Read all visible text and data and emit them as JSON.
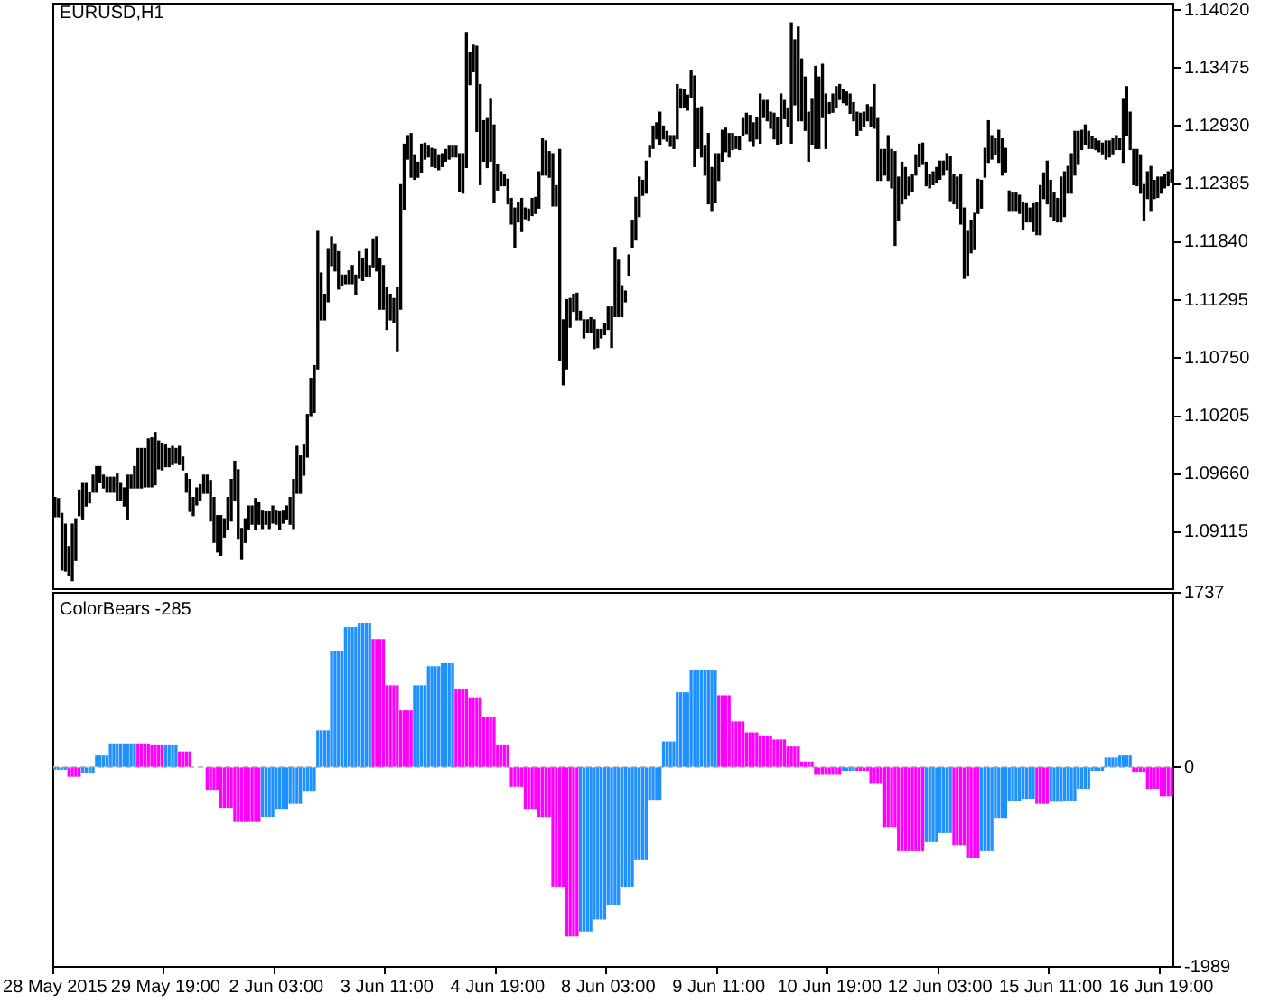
{
  "chart_data": [
    {
      "type": "bar",
      "title": "EURUSD,H1",
      "color": "#000000",
      "tick_labels": "y",
      "categories": [
        null,
        null,
        null,
        null,
        null,
        null,
        null,
        null,
        null,
        null,
        null,
        null,
        null,
        null,
        null,
        null,
        null,
        null,
        null,
        null,
        null,
        null,
        null,
        null,
        null,
        null,
        null,
        null,
        null,
        null,
        null,
        null,
        null,
        null,
        null,
        null,
        null,
        null,
        null,
        null,
        null,
        null,
        null,
        null,
        null,
        null,
        null,
        null,
        null,
        null,
        null,
        null,
        null,
        null,
        null,
        null,
        null,
        null,
        null,
        null,
        null,
        null,
        null,
        null,
        null,
        null,
        null,
        null,
        null,
        null,
        null,
        null,
        null,
        null,
        null,
        null,
        null,
        null,
        null,
        null,
        null,
        null,
        null,
        null,
        null,
        null,
        null,
        null,
        null,
        null,
        null,
        null,
        null,
        null,
        null,
        null,
        null,
        null,
        null,
        null,
        null,
        null,
        null,
        null,
        null,
        null,
        null,
        null,
        null,
        null,
        null,
        null,
        null,
        null,
        null,
        null,
        null,
        null,
        null,
        null,
        null,
        null,
        null,
        null,
        null,
        null,
        null,
        null,
        null,
        null,
        null,
        null,
        null,
        null,
        null,
        null,
        null,
        null,
        null,
        null,
        null,
        null,
        null,
        null,
        null,
        null,
        null,
        null,
        null,
        null,
        null,
        null,
        null,
        null,
        null,
        null,
        null,
        null,
        null,
        null,
        null,
        null,
        null,
        null,
        null,
        null,
        null,
        null,
        null,
        null,
        null,
        null,
        null,
        null,
        null,
        null,
        null,
        null,
        null,
        null,
        null,
        null,
        null,
        null,
        null,
        null,
        null,
        null,
        null,
        null,
        null,
        null,
        null,
        null,
        null,
        null,
        null,
        null,
        null,
        null,
        null,
        null,
        null,
        null,
        null,
        null,
        null,
        null,
        null,
        null,
        null,
        null,
        null,
        null,
        null,
        null,
        null,
        null,
        null,
        null,
        null,
        null,
        null,
        null,
        null,
        null,
        null,
        null,
        null,
        null,
        null,
        null,
        null,
        null,
        null,
        null,
        null,
        null,
        null,
        null,
        null,
        null,
        null,
        null,
        null,
        null,
        null,
        null,
        null,
        null,
        null,
        null,
        null,
        null,
        null,
        null,
        null,
        null,
        null,
        null,
        null,
        null,
        null,
        null,
        null,
        null,
        null,
        null,
        null,
        null,
        null,
        null,
        null,
        null,
        null,
        null,
        null,
        null,
        null,
        null,
        null,
        null,
        null,
        null,
        null,
        null,
        null,
        null,
        null,
        null,
        null,
        null,
        null,
        null,
        null,
        null,
        null,
        null,
        null,
        null,
        null,
        null,
        null,
        null,
        null,
        null,
        null,
        null,
        null,
        null,
        null,
        null,
        null,
        null,
        null,
        null,
        null,
        null,
        null,
        null,
        null,
        null,
        null,
        null
      ],
      "base": [
        1.0926,
        1.0926,
        1.0876,
        1.0875,
        1.0871,
        1.0866,
        1.0885,
        1.0927,
        1.0924,
        1.0936,
        1.0939,
        1.0949,
        1.0949,
        1.0958,
        1.0953,
        1.0949,
        1.0949,
        1.0949,
        1.0941,
        1.0941,
        1.0936,
        1.0924,
        1.0953,
        1.0953,
        1.0953,
        1.0953,
        1.0954,
        1.0954,
        1.0954,
        1.0956,
        1.0971,
        1.097,
        1.0973,
        1.0973,
        1.0975,
        1.0977,
        1.0975,
        1.097,
        1.0949,
        1.0931,
        1.0927,
        1.0937,
        1.0941,
        1.0948,
        1.0948,
        1.0922,
        1.0902,
        1.0893,
        1.089,
        1.0907,
        1.0914,
        1.0922,
        1.0941,
        1.0905,
        1.0886,
        1.0902,
        1.0914,
        1.0919,
        1.0914,
        1.0919,
        1.0915,
        1.0919,
        1.0915,
        1.092,
        1.0919,
        1.0914,
        1.092,
        1.0924,
        1.0919,
        1.0915,
        1.0948,
        1.0948,
        1.0965,
        1.0982,
        1.1021,
        1.1024,
        1.1065,
        1.1111,
        1.1111,
        1.1128,
        1.1162,
        1.1157,
        1.114,
        1.1143,
        1.1145,
        1.1145,
        1.1145,
        1.1135,
        1.115,
        1.1148,
        1.1152,
        1.1152,
        1.116,
        1.1157,
        1.1121,
        1.1121,
        1.1102,
        1.1111,
        1.1109,
        1.1082,
        1.1121,
        1.1215,
        1.1262,
        1.1245,
        1.1243,
        1.1245,
        1.1249,
        1.1262,
        1.1264,
        1.1255,
        1.1254,
        1.1252,
        1.1255,
        1.126,
        1.1262,
        1.1264,
        1.1264,
        1.1232,
        1.123,
        1.1254,
        1.1332,
        1.1344,
        1.1288,
        1.1238,
        1.126,
        1.1254,
        1.126,
        1.1221,
        1.1233,
        1.1237,
        1.1237,
        1.122,
        1.1201,
        1.1179,
        1.1203,
        1.1194,
        1.1206,
        1.1204,
        1.1209,
        1.1211,
        1.1216,
        1.1247,
        1.1247,
        1.1245,
        1.1218,
        1.1218,
        1.1073,
        1.105,
        1.1065,
        1.1104,
        1.1119,
        1.1111,
        1.1111,
        1.1094,
        1.1099,
        1.1099,
        1.1084,
        1.1085,
        1.1094,
        1.1097,
        1.1102,
        1.1085,
        1.1114,
        1.1114,
        1.1114,
        1.1128,
        1.1153,
        1.1179,
        1.1186,
        1.1208,
        1.1228,
        1.123,
        1.1264,
        1.1272,
        1.1281,
        1.1276,
        1.1281,
        1.1279,
        1.1274,
        1.1272,
        1.1281,
        1.131,
        1.1311,
        1.1308,
        1.132,
        1.1255,
        1.1272,
        1.1264,
        1.1247,
        1.122,
        1.1213,
        1.1221,
        1.1242,
        1.126,
        1.1269,
        1.1264,
        1.1271,
        1.1272,
        1.1271,
        1.1284,
        1.1286,
        1.1279,
        1.1274,
        1.1281,
        1.1277,
        1.1301,
        1.1298,
        1.1291,
        1.1281,
        1.1276,
        1.1277,
        1.13,
        1.1293,
        1.1277,
        1.1313,
        1.1298,
        1.1298,
        1.1289,
        1.126,
        1.1276,
        1.1272,
        1.1272,
        1.1301,
        1.1272,
        1.1305,
        1.1306,
        1.131,
        1.1318,
        1.1315,
        1.1313,
        1.1305,
        1.1298,
        1.1284,
        1.1289,
        1.1293,
        1.1298,
        1.1293,
        1.1291,
        1.1242,
        1.1242,
        1.1247,
        1.1242,
        1.1235,
        1.1181,
        1.1204,
        1.122,
        1.1225,
        1.1228,
        1.1232,
        1.1247,
        1.1255,
        1.1257,
        1.1237,
        1.1235,
        1.1238,
        1.124,
        1.1243,
        1.1247,
        1.1252,
        1.1223,
        1.122,
        1.1216,
        1.1201,
        1.115,
        1.1153,
        1.1174,
        1.1177,
        1.1211,
        1.1216,
        1.1245,
        1.1259,
        1.1262,
        1.1266,
        1.1259,
        1.1247,
        1.125,
        1.1213,
        1.1213,
        1.1213,
        1.1211,
        1.1196,
        1.1203,
        1.1203,
        1.1194,
        1.1191,
        1.1191,
        1.1225,
        1.122,
        1.1208,
        1.1204,
        1.1203,
        1.1203,
        1.1208,
        1.123,
        1.123,
        1.1247,
        1.1257,
        1.1271,
        1.1276,
        1.1272,
        1.1272,
        1.1271,
        1.1269,
        1.1267,
        1.1262,
        1.1264,
        1.1267,
        1.1271,
        1.1271,
        1.1259,
        1.1284,
        1.1271,
        1.1238,
        1.1237,
        1.123,
        1.1204,
        1.1225,
        1.1213,
        1.1225,
        1.1226,
        1.123,
        1.1235,
        1.1237,
        1.124
      ],
      "values": [
        0.0018,
        0.0017,
        0.0053,
        0.0044,
        0.0027,
        0.0053,
        0.0039,
        0.0024,
        0.0034,
        0.0022,
        0.001,
        0.0016,
        0.0024,
        0.0015,
        0.0012,
        0.0014,
        0.0014,
        0.0014,
        0.0025,
        0.0017,
        0.0017,
        0.0041,
        0.0012,
        0.002,
        0.0037,
        0.0037,
        0.0036,
        0.0045,
        0.0046,
        0.0049,
        0.0026,
        0.0025,
        0.0021,
        0.0017,
        0.0017,
        0.0013,
        0.0017,
        0.0012,
        0.0017,
        0.003,
        0.0017,
        0.0016,
        0.0015,
        0.0017,
        0.0017,
        0.0038,
        0.0042,
        0.0034,
        0.0037,
        0.0017,
        0.003,
        0.0039,
        0.0037,
        0.0065,
        0.0029,
        0.0022,
        0.0022,
        0.0017,
        0.0029,
        0.002,
        0.0017,
        0.0012,
        0.0016,
        0.0016,
        0.0013,
        0.0017,
        0.0012,
        0.0012,
        0.0025,
        0.0046,
        0.0044,
        0.0035,
        0.0029,
        0.004,
        0.0035,
        0.0044,
        0.0129,
        0.0044,
        0.0024,
        0.0049,
        0.0027,
        0.0025,
        0.0035,
        0.001,
        0.0008,
        0.0012,
        0.0017,
        0.0018,
        0.0025,
        0.0021,
        0.0025,
        0.001,
        0.0027,
        0.0032,
        0.0048,
        0.0041,
        0.0039,
        0.0024,
        0.0022,
        0.0059,
        0.0117,
        0.0061,
        0.0022,
        0.0041,
        0.0023,
        0.0014,
        0.0027,
        0.0015,
        0.001,
        0.0017,
        0.0017,
        0.0014,
        0.0012,
        0.0011,
        0.0012,
        0.001,
        0.001,
        0.0035,
        0.0037,
        0.0127,
        0.003,
        0.0025,
        0.008,
        0.0094,
        0.0038,
        0.0046,
        0.0058,
        0.0073,
        0.0024,
        0.0013,
        0.001,
        0.0023,
        0.0024,
        0.0037,
        0.0018,
        0.0031,
        0.001,
        0.0011,
        0.0016,
        0.0015,
        0.0034,
        0.0034,
        0.0032,
        0.0024,
        0.0049,
        0.0019,
        0.0198,
        0.0061,
        0.0065,
        0.0027,
        0.0016,
        0.0025,
        0.0008,
        0.0017,
        0.0012,
        0.0014,
        0.0027,
        0.0017,
        0.0008,
        0.001,
        0.0021,
        0.0038,
        0.0065,
        0.0053,
        0.0029,
        0.001,
        0.0019,
        0.0025,
        0.004,
        0.0037,
        0.0014,
        0.003,
        0.001,
        0.0021,
        0.0015,
        0.003,
        0.0012,
        0.0009,
        0.001,
        0.0012,
        0.0051,
        0.0018,
        0.0016,
        0.0014,
        0.0025,
        0.0085,
        0.0038,
        0.0047,
        0.0027,
        0.0066,
        0.0041,
        0.0046,
        0.0025,
        0.0029,
        0.0022,
        0.0022,
        0.0015,
        0.0011,
        0.0012,
        0.0016,
        0.0019,
        0.0024,
        0.0022,
        0.002,
        0.0046,
        0.0016,
        0.0019,
        0.0015,
        0.0024,
        0.0025,
        0.0046,
        0.0017,
        0.0017,
        0.0113,
        0.0061,
        0.0088,
        0.0058,
        0.005,
        0.0046,
        0.0042,
        0.0077,
        0.0067,
        0.005,
        0.0051,
        0.001,
        0.0017,
        0.002,
        0.0014,
        0.0012,
        0.0012,
        0.0018,
        0.0017,
        0.0022,
        0.0016,
        0.0013,
        0.0015,
        0.0018,
        0.0041,
        0.0058,
        0.0029,
        0.0024,
        0.0042,
        0.0036,
        0.0088,
        0.0041,
        0.0039,
        0.0029,
        0.0017,
        0.0015,
        0.0019,
        0.0021,
        0.002,
        0.0022,
        0.0012,
        0.0012,
        0.0014,
        0.0017,
        0.0013,
        0.0015,
        0.0041,
        0.0027,
        0.0029,
        0.0046,
        0.0066,
        0.0041,
        0.003,
        0.0034,
        0.0032,
        0.0026,
        0.0027,
        0.0039,
        0.0022,
        0.0015,
        0.003,
        0.0034,
        0.0022,
        0.0019,
        0.0017,
        0.0017,
        0.0017,
        0.0025,
        0.0017,
        0.0013,
        0.0026,
        0.003,
        0.0046,
        0.0024,
        0.004,
        0.0034,
        0.0026,
        0.0022,
        0.0042,
        0.0042,
        0.0025,
        0.0037,
        0.0041,
        0.0031,
        0.0018,
        0.0018,
        0.0016,
        0.0011,
        0.001,
        0.001,
        0.001,
        0.0017,
        0.0015,
        0.0014,
        0.0013,
        0.001,
        0.0059,
        0.0046,
        0.0035,
        0.0033,
        0.0034,
        0.0036,
        0.0034,
        0.0025,
        0.0042,
        0.0017,
        0.0019,
        0.0015,
        0.0012,
        0.0013,
        0.0012
      ],
      "ylim": [
        1.0858,
        1.1408
      ],
      "yticks": [
        {
          "value": 1.1402,
          "label": "1.14020"
        },
        1.13475,
        {
          "value": 1.1293,
          "label": "1.12930"
        },
        1.12385,
        {
          "value": 1.1184,
          "label": "1.11840"
        },
        1.11295,
        {
          "value": 1.1075,
          "label": "1.10750"
        },
        1.10205,
        {
          "value": 1.0966,
          "label": "1.09660"
        },
        1.09115
      ]
    },
    {
      "type": "bar",
      "title": "ColorBears -285",
      "categories": [
        "28 May 2015",
        null,
        null,
        null,
        null,
        null,
        null,
        null,
        null,
        null,
        null,
        null,
        null,
        null,
        null,
        null,
        null,
        null,
        null,
        null,
        null,
        null,
        null,
        null,
        null,
        null,
        null,
        null,
        null,
        null,
        null,
        null,
        "29 May 19:00",
        null,
        null,
        null,
        null,
        null,
        null,
        null,
        null,
        null,
        null,
        null,
        null,
        null,
        null,
        null,
        null,
        null,
        null,
        null,
        null,
        null,
        null,
        null,
        null,
        null,
        null,
        null,
        null,
        null,
        null,
        null,
        "2 Jun 03:00",
        null,
        null,
        null,
        null,
        null,
        null,
        null,
        null,
        null,
        null,
        null,
        null,
        null,
        null,
        null,
        null,
        null,
        null,
        null,
        null,
        null,
        null,
        null,
        null,
        null,
        null,
        null,
        null,
        null,
        null,
        null,
        "3 Jun 11:00",
        null,
        null,
        null,
        null,
        null,
        null,
        null,
        null,
        null,
        null,
        null,
        null,
        null,
        null,
        null,
        null,
        null,
        null,
        null,
        null,
        null,
        null,
        null,
        null,
        null,
        null,
        null,
        null,
        null,
        null,
        null,
        "4 Jun 19:00",
        null,
        null,
        null,
        null,
        null,
        null,
        null,
        null,
        null,
        null,
        null,
        null,
        null,
        null,
        null,
        null,
        null,
        null,
        null,
        null,
        null,
        null,
        null,
        null,
        null,
        null,
        null,
        null,
        null,
        null,
        null,
        "8 Jun 03:00",
        null,
        null,
        null,
        null,
        null,
        null,
        null,
        null,
        null,
        null,
        null,
        null,
        null,
        null,
        null,
        null,
        null,
        null,
        null,
        null,
        null,
        null,
        null,
        null,
        null,
        null,
        null,
        null,
        null,
        null,
        null,
        "9 Jun 11:00",
        null,
        null,
        null,
        null,
        null,
        null,
        null,
        null,
        null,
        null,
        null,
        null,
        null,
        null,
        null,
        null,
        null,
        null,
        null,
        null,
        null,
        null,
        null,
        null,
        null,
        null,
        null,
        null,
        null,
        null,
        null,
        "10 Jun 19:00",
        null,
        null,
        null,
        null,
        null,
        null,
        null,
        null,
        null,
        null,
        null,
        null,
        null,
        null,
        null,
        null,
        null,
        null,
        null,
        null,
        null,
        null,
        null,
        null,
        null,
        null,
        null,
        null,
        null,
        null,
        null,
        "12 Jun 03:00",
        null,
        null,
        null,
        null,
        null,
        null,
        null,
        null,
        null,
        null,
        null,
        null,
        null,
        null,
        null,
        null,
        null,
        null,
        null,
        null,
        null,
        null,
        null,
        null,
        null,
        null,
        null,
        null,
        null,
        null,
        null,
        "15 Jun 11:00",
        null,
        null,
        null,
        null,
        null,
        null,
        null,
        null,
        null,
        null,
        null,
        null,
        null,
        null,
        null,
        null,
        null,
        null,
        null,
        null,
        null,
        null,
        null,
        null,
        null,
        null,
        null,
        null,
        null,
        null,
        null,
        "16 Jun 19:00",
        null,
        null,
        null
      ],
      "values": [
        -20,
        -20,
        -20,
        -20,
        -90,
        -90,
        -90,
        -90,
        -50,
        -50,
        -50,
        -50,
        110,
        110,
        110,
        110,
        230,
        230,
        230,
        230,
        230,
        230,
        230,
        230,
        230,
        230,
        230,
        230,
        220,
        220,
        220,
        220,
        220,
        220,
        220,
        220,
        150,
        150,
        150,
        150,
        null,
        null,
        null,
        null,
        -220,
        -220,
        -220,
        -220,
        -400,
        -400,
        -400,
        -400,
        -540,
        -540,
        -540,
        -540,
        -540,
        -540,
        -540,
        -540,
        -490,
        -490,
        -490,
        -490,
        -410,
        -410,
        -410,
        -410,
        -360,
        -360,
        -360,
        -360,
        -230,
        -230,
        -230,
        -230,
        360,
        360,
        360,
        360,
        1150,
        1150,
        1150,
        1150,
        1390,
        1390,
        1390,
        1390,
        1430,
        1430,
        1430,
        1430,
        1270,
        1270,
        1270,
        1270,
        810,
        810,
        810,
        810,
        560,
        560,
        560,
        560,
        810,
        810,
        810,
        810,
        1000,
        1000,
        1000,
        1000,
        1030,
        1030,
        1030,
        1030,
        770,
        770,
        770,
        770,
        690,
        690,
        690,
        690,
        490,
        490,
        490,
        490,
        220,
        220,
        220,
        220,
        -190,
        -190,
        -190,
        -190,
        -410,
        -410,
        -410,
        -410,
        -490,
        -490,
        -490,
        -490,
        -1190,
        -1190,
        -1190,
        -1190,
        -1680,
        -1680,
        -1680,
        -1680,
        -1630,
        -1630,
        -1630,
        -1630,
        -1510,
        -1510,
        -1510,
        -1510,
        -1370,
        -1370,
        -1370,
        -1370,
        -1190,
        -1190,
        -1190,
        -1190,
        -920,
        -920,
        -920,
        -920,
        -320,
        -320,
        -320,
        -320,
        250,
        250,
        250,
        250,
        740,
        740,
        740,
        740,
        960,
        960,
        960,
        960,
        960,
        960,
        960,
        960,
        710,
        710,
        710,
        710,
        450,
        450,
        450,
        450,
        340,
        340,
        340,
        340,
        310,
        310,
        310,
        310,
        270,
        270,
        270,
        270,
        200,
        200,
        200,
        200,
        50,
        50,
        50,
        50,
        -70,
        -70,
        -70,
        -70,
        -70,
        -70,
        -70,
        -70,
        -30,
        -30,
        -30,
        -30,
        -30,
        -30,
        -30,
        -30,
        -160,
        -160,
        -160,
        -160,
        -590,
        -590,
        -590,
        -590,
        -830,
        -830,
        -830,
        -830,
        -830,
        -830,
        -830,
        -830,
        -740,
        -740,
        -740,
        -740,
        -650,
        -650,
        -650,
        -650,
        -770,
        -770,
        -770,
        -770,
        -900,
        -900,
        -900,
        -900,
        -830,
        -830,
        -830,
        -830,
        -500,
        -500,
        -500,
        -500,
        -330,
        -330,
        -330,
        -330,
        -310,
        -310,
        -310,
        -310,
        -360,
        -360,
        -360,
        -360,
        -340,
        -340,
        -340,
        -340,
        -330,
        -330,
        -330,
        -330,
        -210,
        -210,
        -210,
        -210,
        -30,
        -30,
        -30,
        -30,
        90,
        90,
        90,
        90,
        110,
        110,
        110,
        110,
        -40,
        -40,
        -40,
        -40,
        -210,
        -210,
        -210,
        -210,
        -285,
        -285,
        -285,
        -285
      ],
      "colors": [
        "#1e90ff",
        "#1e90ff",
        "#1e90ff",
        "#1e90ff",
        "#ff00ff",
        "#ff00ff",
        "#ff00ff",
        "#ff00ff",
        "#1e90ff",
        "#1e90ff",
        "#1e90ff",
        "#1e90ff",
        "#1e90ff",
        "#1e90ff",
        "#1e90ff",
        "#1e90ff",
        "#1e90ff",
        "#1e90ff",
        "#1e90ff",
        "#1e90ff",
        "#1e90ff",
        "#1e90ff",
        "#1e90ff",
        "#1e90ff",
        "#ff00ff",
        "#ff00ff",
        "#ff00ff",
        "#ff00ff",
        "#ff00ff",
        "#ff00ff",
        "#ff00ff",
        "#ff00ff",
        "#1e90ff",
        "#1e90ff",
        "#1e90ff",
        "#1e90ff",
        "#ff00ff",
        "#ff00ff",
        "#ff00ff",
        "#ff00ff",
        "#ff00ff",
        "#ff00ff",
        "#ff00ff",
        "#ff00ff",
        "#ff00ff",
        "#ff00ff",
        "#ff00ff",
        "#ff00ff",
        "#ff00ff",
        "#ff00ff",
        "#ff00ff",
        "#ff00ff",
        "#ff00ff",
        "#ff00ff",
        "#ff00ff",
        "#ff00ff",
        "#ff00ff",
        "#ff00ff",
        "#ff00ff",
        "#ff00ff",
        "#1e90ff",
        "#1e90ff",
        "#1e90ff",
        "#1e90ff",
        "#1e90ff",
        "#1e90ff",
        "#1e90ff",
        "#1e90ff",
        "#1e90ff",
        "#1e90ff",
        "#1e90ff",
        "#1e90ff",
        "#1e90ff",
        "#1e90ff",
        "#1e90ff",
        "#1e90ff",
        "#1e90ff",
        "#1e90ff",
        "#1e90ff",
        "#1e90ff",
        "#1e90ff",
        "#1e90ff",
        "#1e90ff",
        "#1e90ff",
        "#1e90ff",
        "#1e90ff",
        "#1e90ff",
        "#1e90ff",
        "#1e90ff",
        "#1e90ff",
        "#1e90ff",
        "#1e90ff",
        "#ff00ff",
        "#ff00ff",
        "#ff00ff",
        "#ff00ff",
        "#ff00ff",
        "#ff00ff",
        "#ff00ff",
        "#ff00ff",
        "#ff00ff",
        "#ff00ff",
        "#ff00ff",
        "#ff00ff",
        "#1e90ff",
        "#1e90ff",
        "#1e90ff",
        "#1e90ff",
        "#1e90ff",
        "#1e90ff",
        "#1e90ff",
        "#1e90ff",
        "#1e90ff",
        "#1e90ff",
        "#1e90ff",
        "#1e90ff",
        "#ff00ff",
        "#ff00ff",
        "#ff00ff",
        "#ff00ff",
        "#ff00ff",
        "#ff00ff",
        "#ff00ff",
        "#ff00ff",
        "#ff00ff",
        "#ff00ff",
        "#ff00ff",
        "#ff00ff",
        "#ff00ff",
        "#ff00ff",
        "#ff00ff",
        "#ff00ff",
        "#ff00ff",
        "#ff00ff",
        "#ff00ff",
        "#ff00ff",
        "#ff00ff",
        "#ff00ff",
        "#ff00ff",
        "#ff00ff",
        "#ff00ff",
        "#ff00ff",
        "#ff00ff",
        "#ff00ff",
        "#ff00ff",
        "#ff00ff",
        "#ff00ff",
        "#ff00ff",
        "#ff00ff",
        "#ff00ff",
        "#ff00ff",
        "#ff00ff",
        "#1e90ff",
        "#1e90ff",
        "#1e90ff",
        "#1e90ff",
        "#1e90ff",
        "#1e90ff",
        "#1e90ff",
        "#1e90ff",
        "#1e90ff",
        "#1e90ff",
        "#1e90ff",
        "#1e90ff",
        "#1e90ff",
        "#1e90ff",
        "#1e90ff",
        "#1e90ff",
        "#1e90ff",
        "#1e90ff",
        "#1e90ff",
        "#1e90ff",
        "#1e90ff",
        "#1e90ff",
        "#1e90ff",
        "#1e90ff",
        "#1e90ff",
        "#1e90ff",
        "#1e90ff",
        "#1e90ff",
        "#1e90ff",
        "#1e90ff",
        "#1e90ff",
        "#1e90ff",
        "#1e90ff",
        "#1e90ff",
        "#1e90ff",
        "#1e90ff",
        "#1e90ff",
        "#1e90ff",
        "#1e90ff",
        "#1e90ff",
        "#ff00ff",
        "#ff00ff",
        "#ff00ff",
        "#ff00ff",
        "#ff00ff",
        "#ff00ff",
        "#ff00ff",
        "#ff00ff",
        "#ff00ff",
        "#ff00ff",
        "#ff00ff",
        "#ff00ff",
        "#ff00ff",
        "#ff00ff",
        "#ff00ff",
        "#ff00ff",
        "#ff00ff",
        "#ff00ff",
        "#ff00ff",
        "#ff00ff",
        "#ff00ff",
        "#ff00ff",
        "#ff00ff",
        "#ff00ff",
        "#ff00ff",
        "#ff00ff",
        "#ff00ff",
        "#ff00ff",
        "#ff00ff",
        "#ff00ff",
        "#ff00ff",
        "#ff00ff",
        "#ff00ff",
        "#ff00ff",
        "#ff00ff",
        "#ff00ff",
        "#1e90ff",
        "#1e90ff",
        "#1e90ff",
        "#1e90ff",
        "#ff00ff",
        "#ff00ff",
        "#ff00ff",
        "#ff00ff",
        "#ff00ff",
        "#ff00ff",
        "#ff00ff",
        "#ff00ff",
        "#ff00ff",
        "#ff00ff",
        "#ff00ff",
        "#ff00ff",
        "#ff00ff",
        "#ff00ff",
        "#ff00ff",
        "#ff00ff",
        "#ff00ff",
        "#ff00ff",
        "#ff00ff",
        "#ff00ff",
        "#1e90ff",
        "#1e90ff",
        "#1e90ff",
        "#1e90ff",
        "#1e90ff",
        "#1e90ff",
        "#1e90ff",
        "#1e90ff",
        "#ff00ff",
        "#ff00ff",
        "#ff00ff",
        "#ff00ff",
        "#ff00ff",
        "#ff00ff",
        "#ff00ff",
        "#ff00ff",
        "#1e90ff",
        "#1e90ff",
        "#1e90ff",
        "#1e90ff",
        "#1e90ff",
        "#1e90ff",
        "#1e90ff",
        "#1e90ff",
        "#1e90ff",
        "#1e90ff",
        "#1e90ff",
        "#1e90ff",
        "#1e90ff",
        "#1e90ff",
        "#1e90ff",
        "#1e90ff",
        "#ff00ff",
        "#ff00ff",
        "#ff00ff",
        "#ff00ff",
        "#1e90ff",
        "#1e90ff",
        "#1e90ff",
        "#1e90ff",
        "#1e90ff",
        "#1e90ff",
        "#1e90ff",
        "#1e90ff",
        "#1e90ff",
        "#1e90ff",
        "#1e90ff",
        "#1e90ff",
        "#1e90ff",
        "#1e90ff",
        "#1e90ff",
        "#1e90ff",
        "#1e90ff",
        "#1e90ff",
        "#1e90ff",
        "#1e90ff",
        "#1e90ff",
        "#1e90ff",
        "#1e90ff",
        "#1e90ff",
        "#ff00ff",
        "#ff00ff",
        "#ff00ff",
        "#ff00ff",
        "#ff00ff",
        "#ff00ff",
        "#ff00ff",
        "#ff00ff",
        "#ff00ff",
        "#ff00ff",
        "#ff00ff",
        "#ff00ff"
      ],
      "ylim": [
        -1989,
        1737
      ],
      "yticks": [
        1737,
        0,
        -1989
      ],
      "ref_lines": [
        {
          "axis": "y",
          "value": 0,
          "color": "#c0c0c0",
          "line_style": "dashed"
        }
      ]
    }
  ]
}
